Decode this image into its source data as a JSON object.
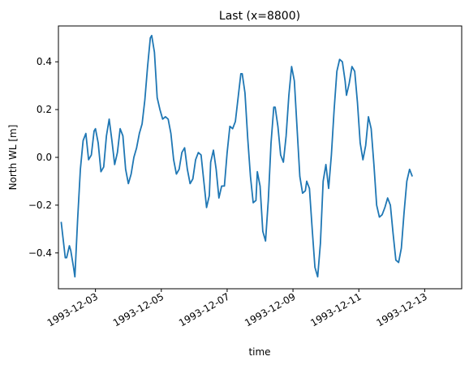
{
  "chart_data": {
    "type": "line",
    "title": "Last (x=8800)",
    "xlabel": "time",
    "ylabel": "North WL [m]",
    "xlim": [
      "1993-12-01T21:00",
      "1993-12-14T03:00"
    ],
    "ylim": [
      -0.55,
      0.55
    ],
    "yticks": [
      -0.4,
      -0.2,
      0.0,
      0.2,
      0.4
    ],
    "yticklabels": [
      "−0.4",
      "−0.2",
      "0.0",
      "0.2",
      "0.4"
    ],
    "xticks": [
      "1993-12-03",
      "1993-12-05",
      "1993-12-07",
      "1993-12-09",
      "1993-12-11",
      "1993-12-13"
    ],
    "xticklabels": [
      "1993-12-03",
      "1993-12-05",
      "1993-12-07",
      "1993-12-09",
      "1993-12-11",
      "1993-12-13"
    ],
    "grid": false,
    "line_color": "#1f77b4",
    "series": [
      {
        "points": [
          [
            "1993-12-01T23:00",
            -0.27
          ],
          [
            "1993-12-02T01:00",
            -0.37
          ],
          [
            "1993-12-02T02:00",
            -0.42
          ],
          [
            "1993-12-02T03:00",
            -0.42
          ],
          [
            "1993-12-02T05:00",
            -0.37
          ],
          [
            "1993-12-02T06:00",
            -0.39
          ],
          [
            "1993-12-02T08:00",
            -0.46
          ],
          [
            "1993-12-02T09:00",
            -0.5
          ],
          [
            "1993-12-02T11:00",
            -0.26
          ],
          [
            "1993-12-02T13:00",
            -0.05
          ],
          [
            "1993-12-02T15:00",
            0.07
          ],
          [
            "1993-12-02T17:00",
            0.1
          ],
          [
            "1993-12-02T19:00",
            -0.01
          ],
          [
            "1993-12-02T21:00",
            0.01
          ],
          [
            "1993-12-02T23:00",
            0.11
          ],
          [
            "1993-12-03T00:00",
            0.12
          ],
          [
            "1993-12-03T02:00",
            0.06
          ],
          [
            "1993-12-03T04:00",
            -0.06
          ],
          [
            "1993-12-03T06:00",
            -0.04
          ],
          [
            "1993-12-03T08:00",
            0.09
          ],
          [
            "1993-12-03T10:00",
            0.16
          ],
          [
            "1993-12-03T12:00",
            0.07
          ],
          [
            "1993-12-03T14:00",
            -0.03
          ],
          [
            "1993-12-03T16:00",
            0.02
          ],
          [
            "1993-12-03T18:00",
            0.12
          ],
          [
            "1993-12-03T20:00",
            0.09
          ],
          [
            "1993-12-03T22:00",
            -0.05
          ],
          [
            "1993-12-04T00:00",
            -0.11
          ],
          [
            "1993-12-04T02:00",
            -0.07
          ],
          [
            "1993-12-04T04:00",
            0.0
          ],
          [
            "1993-12-04T06:00",
            0.04
          ],
          [
            "1993-12-04T08:00",
            0.1
          ],
          [
            "1993-12-04T10:00",
            0.14
          ],
          [
            "1993-12-04T12:00",
            0.24
          ],
          [
            "1993-12-04T14:00",
            0.38
          ],
          [
            "1993-12-04T16:00",
            0.5
          ],
          [
            "1993-12-04T17:00",
            0.51
          ],
          [
            "1993-12-04T19:00",
            0.44
          ],
          [
            "1993-12-04T21:00",
            0.25
          ],
          [
            "1993-12-04T23:00",
            0.2
          ],
          [
            "1993-12-05T01:00",
            0.16
          ],
          [
            "1993-12-05T03:00",
            0.17
          ],
          [
            "1993-12-05T05:00",
            0.16
          ],
          [
            "1993-12-05T07:00",
            0.1
          ],
          [
            "1993-12-05T09:00",
            -0.01
          ],
          [
            "1993-12-05T11:00",
            -0.07
          ],
          [
            "1993-12-05T13:00",
            -0.05
          ],
          [
            "1993-12-05T15:00",
            0.02
          ],
          [
            "1993-12-05T17:00",
            0.04
          ],
          [
            "1993-12-05T19:00",
            -0.05
          ],
          [
            "1993-12-05T21:00",
            -0.11
          ],
          [
            "1993-12-05T23:00",
            -0.09
          ],
          [
            "1993-12-06T01:00",
            -0.01
          ],
          [
            "1993-12-06T03:00",
            0.02
          ],
          [
            "1993-12-06T05:00",
            0.01
          ],
          [
            "1993-12-06T07:00",
            -0.1
          ],
          [
            "1993-12-06T09:00",
            -0.21
          ],
          [
            "1993-12-06T11:00",
            -0.16
          ],
          [
            "1993-12-06T12:00",
            -0.02
          ],
          [
            "1993-12-06T14:00",
            0.03
          ],
          [
            "1993-12-06T16:00",
            -0.05
          ],
          [
            "1993-12-06T18:00",
            -0.17
          ],
          [
            "1993-12-06T20:00",
            -0.12
          ],
          [
            "1993-12-06T22:00",
            -0.12
          ],
          [
            "1993-12-07T00:00",
            0.02
          ],
          [
            "1993-12-07T02:00",
            0.13
          ],
          [
            "1993-12-07T04:00",
            0.12
          ],
          [
            "1993-12-07T06:00",
            0.15
          ],
          [
            "1993-12-07T08:00",
            0.25
          ],
          [
            "1993-12-07T10:00",
            0.35
          ],
          [
            "1993-12-07T11:00",
            0.35
          ],
          [
            "1993-12-07T13:00",
            0.27
          ],
          [
            "1993-12-07T15:00",
            0.08
          ],
          [
            "1993-12-07T17:00",
            -0.08
          ],
          [
            "1993-12-07T19:00",
            -0.19
          ],
          [
            "1993-12-07T21:00",
            -0.18
          ],
          [
            "1993-12-07T22:00",
            -0.06
          ],
          [
            "1993-12-08T00:00",
            -0.12
          ],
          [
            "1993-12-08T02:00",
            -0.31
          ],
          [
            "1993-12-08T04:00",
            -0.35
          ],
          [
            "1993-12-08T06:00",
            -0.18
          ],
          [
            "1993-12-08T08:00",
            0.06
          ],
          [
            "1993-12-08T10:00",
            0.21
          ],
          [
            "1993-12-08T11:00",
            0.21
          ],
          [
            "1993-12-08T13:00",
            0.13
          ],
          [
            "1993-12-08T15:00",
            0.01
          ],
          [
            "1993-12-08T17:00",
            -0.02
          ],
          [
            "1993-12-08T19:00",
            0.09
          ],
          [
            "1993-12-08T21:00",
            0.26
          ],
          [
            "1993-12-08T23:00",
            0.38
          ],
          [
            "1993-12-09T01:00",
            0.32
          ],
          [
            "1993-12-09T03:00",
            0.12
          ],
          [
            "1993-12-09T05:00",
            -0.08
          ],
          [
            "1993-12-09T07:00",
            -0.15
          ],
          [
            "1993-12-09T09:00",
            -0.14
          ],
          [
            "1993-12-09T10:00",
            -0.1
          ],
          [
            "1993-12-09T12:00",
            -0.13
          ],
          [
            "1993-12-09T14:00",
            -0.3
          ],
          [
            "1993-12-09T16:00",
            -0.46
          ],
          [
            "1993-12-09T18:00",
            -0.5
          ],
          [
            "1993-12-09T20:00",
            -0.36
          ],
          [
            "1993-12-09T22:00",
            -0.1
          ],
          [
            "1993-12-10T00:00",
            -0.03
          ],
          [
            "1993-12-10T02:00",
            -0.13
          ],
          [
            "1993-12-10T04:00",
            0.01
          ],
          [
            "1993-12-10T06:00",
            0.2
          ],
          [
            "1993-12-10T08:00",
            0.36
          ],
          [
            "1993-12-10T10:00",
            0.41
          ],
          [
            "1993-12-10T12:00",
            0.4
          ],
          [
            "1993-12-10T14:00",
            0.32
          ],
          [
            "1993-12-10T15:00",
            0.26
          ],
          [
            "1993-12-10T17:00",
            0.31
          ],
          [
            "1993-12-10T19:00",
            0.38
          ],
          [
            "1993-12-10T21:00",
            0.36
          ],
          [
            "1993-12-10T23:00",
            0.23
          ],
          [
            "1993-12-11T01:00",
            0.06
          ],
          [
            "1993-12-11T03:00",
            -0.01
          ],
          [
            "1993-12-11T05:00",
            0.05
          ],
          [
            "1993-12-11T07:00",
            0.17
          ],
          [
            "1993-12-11T09:00",
            0.12
          ],
          [
            "1993-12-11T11:00",
            -0.03
          ],
          [
            "1993-12-11T13:00",
            -0.2
          ],
          [
            "1993-12-11T15:00",
            -0.25
          ],
          [
            "1993-12-11T17:00",
            -0.24
          ],
          [
            "1993-12-11T19:00",
            -0.21
          ],
          [
            "1993-12-11T21:00",
            -0.17
          ],
          [
            "1993-12-11T23:00",
            -0.2
          ],
          [
            "1993-12-12T01:00",
            -0.32
          ],
          [
            "1993-12-12T03:00",
            -0.43
          ],
          [
            "1993-12-12T05:00",
            -0.44
          ],
          [
            "1993-12-12T07:00",
            -0.38
          ],
          [
            "1993-12-12T09:00",
            -0.23
          ],
          [
            "1993-12-12T11:00",
            -0.1
          ],
          [
            "1993-12-12T13:00",
            -0.05
          ],
          [
            "1993-12-12T15:00",
            -0.08
          ]
        ]
      }
    ]
  }
}
